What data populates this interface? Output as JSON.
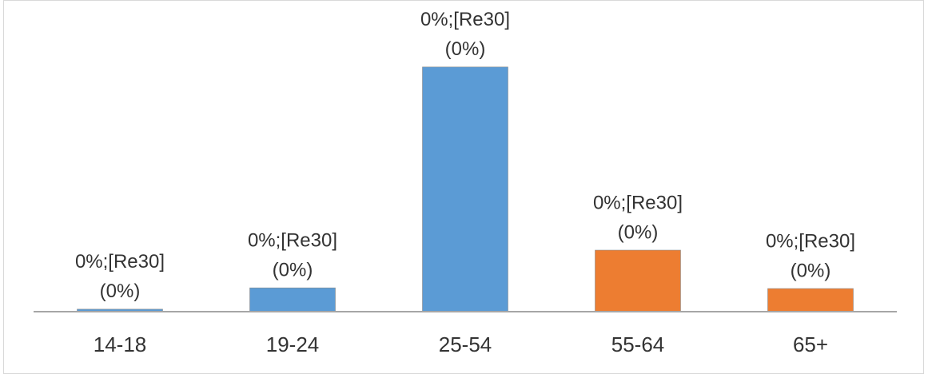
{
  "chart_data": {
    "type": "bar",
    "categories": [
      "14-18",
      "19-24",
      "25-54",
      "55-64",
      "65+"
    ],
    "values": [
      0.7,
      6.7,
      68.8,
      17.3,
      6.5
    ],
    "colors": [
      "#5b9bd5",
      "#5b9bd5",
      "#5b9bd5",
      "#ed7d31",
      "#ed7d31"
    ],
    "annotations": [
      [
        "0%;[Re30]",
        "(0%)"
      ],
      [
        "0%;[Re30]",
        "(0%)"
      ],
      [
        "0%;[Re30]",
        "(0%)"
      ],
      [
        "0%;[Re30]",
        "(0%)"
      ],
      [
        "0%;[Re30]",
        "(0%)"
      ]
    ]
  }
}
